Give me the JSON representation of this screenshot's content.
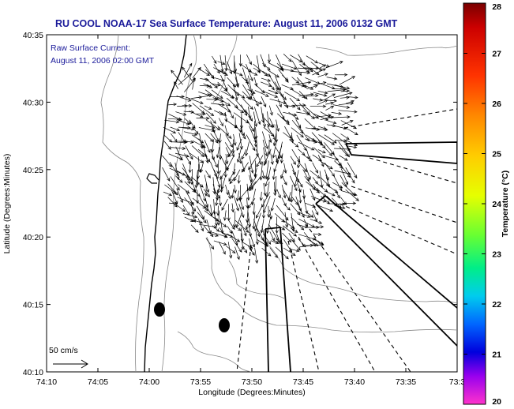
{
  "title": "RU COOL  NOAA-17  Sea Surface Temperature:  August 11, 2006 0132 GMT",
  "annotation": {
    "line1": "Raw Surface Current:",
    "line2": "August 11, 2006 02:00 GMT"
  },
  "scale_label": "50 cm/s",
  "axes": {
    "xlabel": "Longitude (Degrees:Minutes)",
    "ylabel": "Latitude (Degrees:Minutes)",
    "xticks": [
      "74:10",
      "74:05",
      "74:00",
      "73:55",
      "73:50",
      "73:45",
      "73:40",
      "73:35",
      "73:3"
    ],
    "yticks": [
      "40:35",
      "40:30",
      "40:25",
      "40:20",
      "40:15",
      "40:10"
    ]
  },
  "colorbar": {
    "label": "Temperature (°C)",
    "ticks": [
      "28",
      "27",
      "26",
      "25",
      "24",
      "23",
      "22",
      "21",
      "20"
    ],
    "min": 20,
    "max": 28
  },
  "chart_data": {
    "type": "map",
    "xlabel": "Longitude (Degrees:Minutes)",
    "ylabel": "Latitude (Degrees:Minutes)",
    "xlim": [
      "74:10",
      "73:30"
    ],
    "ylim": [
      "40:10",
      "40:35"
    ],
    "layers": [
      "coastline",
      "bathymetry contours",
      "surface current vectors",
      "radar beam lines"
    ],
    "colorbar_range": [
      20,
      28
    ]
  }
}
